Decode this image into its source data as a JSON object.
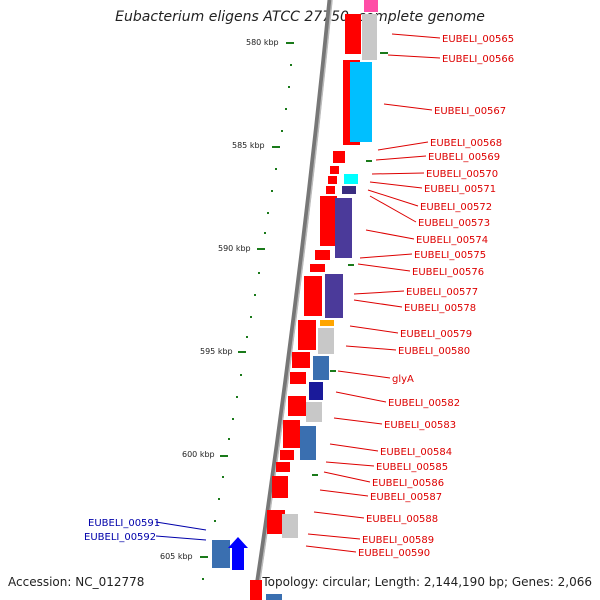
{
  "title": "Eubacterium eligens ATCC 27750, complete genome",
  "footer": {
    "accession_label": "Accession: NC_012778",
    "topology_label": "Topology: circular; Length: 2,144,190 bp; Genes: 2,066"
  },
  "colors": {
    "fwd_strand": "#ff0000",
    "rev_label": "#0000aa",
    "fwd_label": "#dd0000",
    "ticks": "#1a7a1a",
    "backbone": "#777777"
  },
  "ruler": [
    {
      "label": "580 kbp",
      "kbp": 580
    },
    {
      "label": "585 kbp",
      "kbp": 585
    },
    {
      "label": "590 kbp",
      "kbp": 590
    },
    {
      "label": "595 kbp",
      "kbp": 595
    },
    {
      "label": "600 kbp",
      "kbp": 600
    },
    {
      "label": "605 kbp",
      "kbp": 605
    }
  ],
  "genes_right": [
    "EUBELI_00565",
    "EUBELI_00566",
    "EUBELI_00567",
    "EUBELI_00568",
    "EUBELI_00569",
    "EUBELI_00570",
    "EUBELI_00571",
    "EUBELI_00572",
    "EUBELI_00573",
    "EUBELI_00574",
    "EUBELI_00575",
    "EUBELI_00576",
    "EUBELI_00577",
    "EUBELI_00578",
    "EUBELI_00579",
    "EUBELI_00580",
    "glyA",
    "EUBELI_00582",
    "EUBELI_00583",
    "EUBELI_00584",
    "EUBELI_00585",
    "EUBELI_00586",
    "EUBELI_00587",
    "EUBELI_00588",
    "EUBELI_00589",
    "EUBELI_00590"
  ],
  "genes_left": [
    "EUBELI_00591",
    "EUBELI_00592"
  ]
}
